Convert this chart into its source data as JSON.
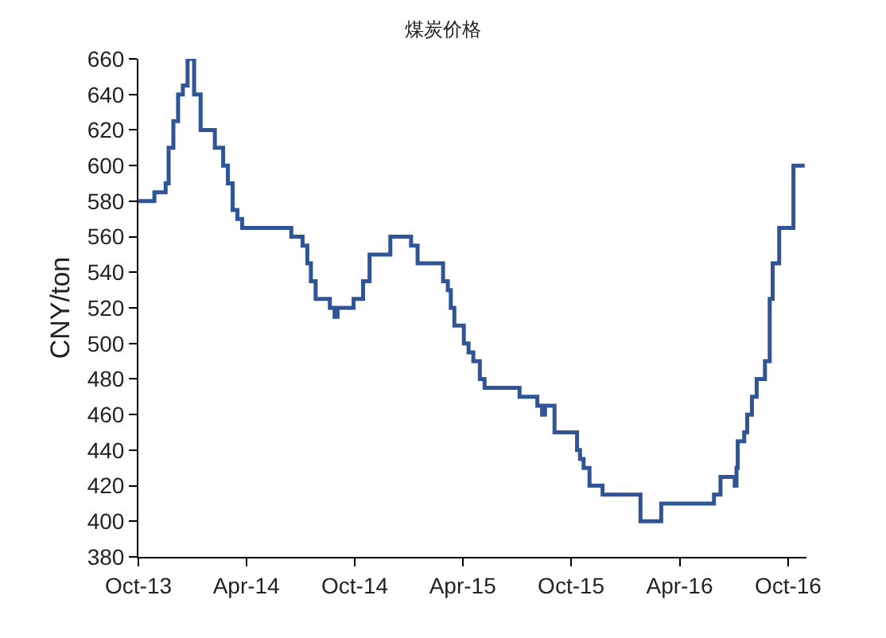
{
  "chart_data": {
    "type": "step",
    "title": "煤炭价格",
    "ylabel": "CNY/ton",
    "x": [
      "2013-10-01",
      "2013-10-28",
      "2013-11-16",
      "2013-11-21",
      "2013-11-29",
      "2013-12-07",
      "2013-12-15",
      "2013-12-23",
      "2014-01-03",
      "2014-01-14",
      "2014-02-07",
      "2014-02-21",
      "2014-03-01",
      "2014-03-09",
      "2014-03-17",
      "2014-03-25",
      "2014-06-16",
      "2014-07-05",
      "2014-07-13",
      "2014-07-19",
      "2014-07-27",
      "2014-08-20",
      "2014-08-28",
      "2014-09-02",
      "2014-09-29",
      "2014-10-15",
      "2014-10-26",
      "2014-11-30",
      "2015-01-04",
      "2015-01-15",
      "2015-02-27",
      "2015-03-07",
      "2015-03-12",
      "2015-03-18",
      "2015-04-03",
      "2015-04-11",
      "2015-04-19",
      "2015-04-30",
      "2015-05-08",
      "2015-07-06",
      "2015-08-05",
      "2015-08-13",
      "2015-08-18",
      "2015-09-03",
      "2015-10-11",
      "2015-10-16",
      "2015-10-22",
      "2015-11-01",
      "2015-11-23",
      "2016-01-26",
      "2016-03-01",
      "2016-05-29",
      "2016-06-09",
      "2016-07-03",
      "2016-07-06",
      "2016-07-08",
      "2016-07-19",
      "2016-07-24",
      "2016-08-01",
      "2016-08-09",
      "2016-08-23",
      "2016-08-31",
      "2016-09-05",
      "2016-09-16",
      "2016-10-10",
      "2016-10-29"
    ],
    "series": [
      {
        "color": "#2f5597",
        "values": [
          580,
          585,
          590,
          610,
          625,
          640,
          645,
          660,
          640,
          620,
          610,
          600,
          590,
          575,
          570,
          565,
          560,
          555,
          545,
          535,
          525,
          520,
          515,
          520,
          525,
          535,
          550,
          560,
          555,
          545,
          535,
          530,
          520,
          510,
          500,
          495,
          490,
          480,
          475,
          470,
          465,
          460,
          465,
          450,
          440,
          435,
          430,
          420,
          415,
          400,
          410,
          415,
          425,
          420,
          430,
          445,
          450,
          460,
          470,
          480,
          490,
          525,
          545,
          565,
          600,
          600
        ]
      }
    ],
    "xlim": [
      "2013-10-01",
      "2016-11-01"
    ],
    "xticks": [
      {
        "value": "2013-10-01",
        "label": "Oct-13"
      },
      {
        "value": "2014-04-01",
        "label": "Apr-14"
      },
      {
        "value": "2014-10-01",
        "label": "Oct-14"
      },
      {
        "value": "2015-04-01",
        "label": "Apr-15"
      },
      {
        "value": "2015-10-01",
        "label": "Oct-15"
      },
      {
        "value": "2016-04-01",
        "label": "Apr-16"
      },
      {
        "value": "2016-10-01",
        "label": "Oct-16"
      }
    ],
    "ylim": [
      380,
      660
    ],
    "yticks": [
      380,
      400,
      420,
      440,
      460,
      480,
      500,
      520,
      540,
      560,
      580,
      600,
      620,
      640,
      660
    ],
    "line_style": "solid",
    "marker": "none"
  }
}
